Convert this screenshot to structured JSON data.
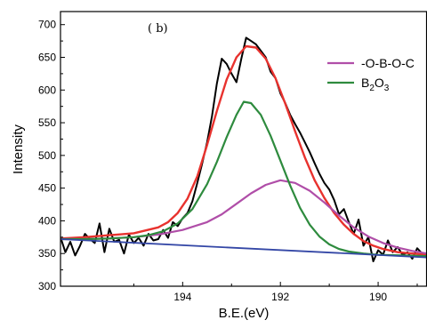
{
  "chart_data": {
    "type": "line",
    "panel_label": "( b)",
    "xlabel": "B.E.(eV)",
    "ylabel": "Intensity",
    "xlim": [
      196.5,
      189.0
    ],
    "ylim": [
      300,
      720
    ],
    "xticks": [
      194,
      192,
      190
    ],
    "xtick_labels": [
      "194",
      "192",
      "190"
    ],
    "yticks": [
      300,
      350,
      400,
      450,
      500,
      550,
      600,
      650,
      700
    ],
    "ytick_labels": [
      "300",
      "350",
      "400",
      "450",
      "500",
      "550",
      "600",
      "650",
      "700"
    ],
    "grid": false,
    "legend_position": "top-right",
    "legend": [
      {
        "label": "-O-B-O-C",
        "color": "#b04ea8"
      },
      {
        "label": "B2O3",
        "main": "B",
        "sub1": "2",
        "mid": "O",
        "sub2": "3",
        "color": "#2e8b3e"
      }
    ],
    "series": [
      {
        "color": "#000000",
        "x": [
          196.5,
          196.4,
          196.3,
          196.2,
          196.1,
          196.0,
          195.9,
          195.8,
          195.7,
          195.6,
          195.5,
          195.4,
          195.3,
          195.2,
          195.1,
          195.0,
          194.9,
          194.8,
          194.7,
          194.6,
          194.5,
          194.4,
          194.3,
          194.2,
          194.1,
          194.0,
          193.9,
          193.8,
          193.7,
          193.6,
          193.5,
          193.4,
          193.3,
          193.2,
          193.1,
          193.0,
          192.9,
          192.8,
          192.7,
          192.6,
          192.5,
          192.4,
          192.3,
          192.2,
          192.1,
          192.0,
          191.9,
          191.8,
          191.7,
          191.6,
          191.5,
          191.4,
          191.3,
          191.2,
          191.1,
          191.0,
          190.9,
          190.8,
          190.7,
          190.6,
          190.5,
          190.4,
          190.3,
          190.2,
          190.1,
          190.0,
          189.9,
          189.8,
          189.7,
          189.6,
          189.5,
          189.4,
          189.3,
          189.2,
          189.1,
          189.0
        ],
        "y": [
          375,
          352,
          368,
          347,
          362,
          380,
          372,
          366,
          396,
          352,
          388,
          368,
          371,
          350,
          379,
          366,
          374,
          362,
          380,
          370,
          372,
          386,
          374,
          398,
          392,
          404,
          412,
          430,
          458,
          488,
          520,
          560,
          610,
          648,
          640,
          625,
          612,
          648,
          680,
          675,
          670,
          660,
          650,
          628,
          618,
          595,
          580,
          562,
          548,
          535,
          520,
          505,
          488,
          472,
          458,
          448,
          432,
          410,
          418,
          398,
          380,
          402,
          362,
          375,
          338,
          355,
          348,
          370,
          352,
          360,
          348,
          352,
          342,
          358,
          350,
          346
        ]
      },
      {
        "color": "#e8322e",
        "x": [
          196.5,
          196.0,
          195.5,
          195.0,
          194.5,
          194.3,
          194.1,
          193.9,
          193.7,
          193.5,
          193.3,
          193.1,
          192.9,
          192.7,
          192.5,
          192.3,
          192.1,
          191.9,
          191.7,
          191.5,
          191.3,
          191.1,
          190.9,
          190.7,
          190.5,
          190.3,
          190.1,
          189.9,
          189.6,
          189.3,
          189.0
        ],
        "y": [
          373,
          375,
          378,
          381,
          390,
          398,
          412,
          434,
          468,
          516,
          568,
          616,
          650,
          667,
          665,
          648,
          618,
          579,
          537,
          497,
          462,
          435,
          412,
          394,
          380,
          369,
          362,
          357,
          352,
          350,
          348
        ]
      },
      {
        "color": "#b04ea8",
        "x": [
          196.5,
          196.0,
          195.5,
          195.0,
          194.5,
          194.0,
          193.5,
          193.2,
          192.9,
          192.6,
          192.3,
          192.0,
          191.7,
          191.4,
          191.1,
          190.8,
          190.5,
          190.2,
          189.9,
          189.6,
          189.3,
          189.0
        ],
        "y": [
          372,
          372,
          373,
          375,
          379,
          386,
          398,
          410,
          426,
          442,
          455,
          462,
          458,
          446,
          428,
          408,
          390,
          376,
          366,
          359,
          354,
          350
        ]
      },
      {
        "color": "#2e8b3e",
        "x": [
          196.5,
          196.0,
          195.5,
          195.0,
          194.7,
          194.4,
          194.1,
          193.8,
          193.5,
          193.3,
          193.1,
          192.9,
          192.75,
          192.6,
          192.4,
          192.2,
          192.0,
          191.8,
          191.6,
          191.4,
          191.2,
          191.0,
          190.8,
          190.6,
          190.3,
          190.0,
          189.5,
          189.0
        ],
        "y": [
          372,
          372,
          373,
          375,
          378,
          384,
          396,
          418,
          456,
          490,
          528,
          562,
          582,
          580,
          562,
          530,
          492,
          454,
          420,
          394,
          376,
          364,
          357,
          353,
          350,
          348,
          347,
          346
        ]
      },
      {
        "color": "#3447a6",
        "x": [
          196.5,
          189.0
        ],
        "y": [
          372,
          344
        ]
      }
    ]
  }
}
